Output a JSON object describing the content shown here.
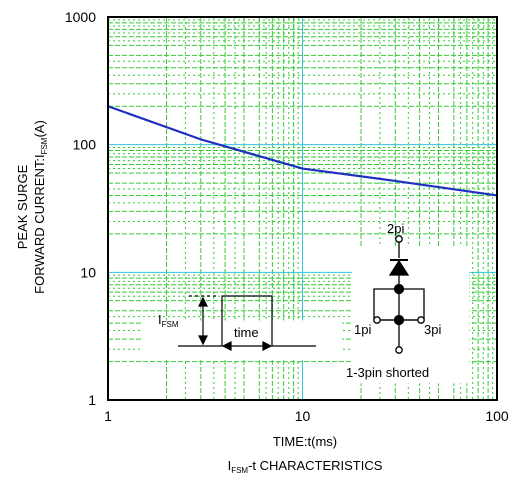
{
  "chart_data": {
    "type": "line",
    "x_scale": "log",
    "y_scale": "log",
    "xlim": [
      1,
      100
    ],
    "ylim": [
      1,
      1000
    ],
    "x_ticks": [
      "1",
      "10",
      "100"
    ],
    "y_ticks": [
      "1",
      "10",
      "100",
      "1000"
    ],
    "grid": true,
    "series": [
      {
        "points": [
          [
            1,
            200
          ],
          [
            3,
            110
          ],
          [
            10,
            65
          ],
          [
            30,
            52
          ],
          [
            100,
            40
          ]
        ]
      }
    ],
    "xlabel": "TIME:t(ms)",
    "ylabel_line1": "PEAK SURGE",
    "ylabel_line2_main": "FORWARD CURRENT:I",
    "ylabel_line2_sub": "FSM",
    "ylabel_line2_unit": "(A)",
    "caption_main": "I",
    "caption_sub": "FSM",
    "caption_rest": "-t CHARACTERISTICS",
    "pulse_inset": {
      "label_main": "I",
      "label_sub": "FSM",
      "time_label": "time"
    },
    "diode_inset": {
      "pin_top": "2pi",
      "pin_left": "1pi",
      "pin_right": "3pi",
      "note": "1-3pin shorted"
    },
    "colors": {
      "curve": "#1f2fbf",
      "major_grid": "#33c4de",
      "minor_grid": "#33cc33",
      "axis": "#000000"
    }
  }
}
